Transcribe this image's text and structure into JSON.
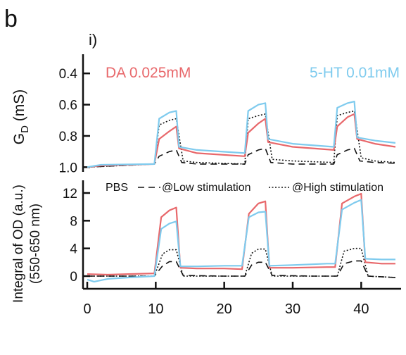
{
  "panel": {
    "letter": "b",
    "sublabel": "i)"
  },
  "chart_data": [
    {
      "type": "line",
      "name": "top",
      "ylabel_main": "G",
      "ylabel_sub": "D",
      "ylabel_unit": " (mS)",
      "y_reversed": true,
      "ylim": [
        0.3,
        1.03
      ],
      "xlim": [
        0,
        45
      ],
      "yticks": [
        0.4,
        0.6,
        0.8,
        1.0
      ],
      "yticklabels": [
        "0.4",
        "0.6",
        "0.8",
        "1.0"
      ],
      "annotations": {
        "left": "DA 0.025mM",
        "right": "5-HT 0.01mM",
        "left_color": "#e8686b",
        "right_color": "#7fcbee"
      },
      "series": [
        {
          "name": "DA 0.025mM",
          "color": "#e8686b",
          "style": "solid",
          "points": [
            [
              0,
              1.0
            ],
            [
              2,
              0.99
            ],
            [
              9.8,
              0.98
            ],
            [
              10.5,
              0.82
            ],
            [
              12,
              0.77
            ],
            [
              13,
              0.74
            ],
            [
              13.4,
              0.88
            ],
            [
              16,
              0.91
            ],
            [
              23,
              0.93
            ],
            [
              23.5,
              0.78
            ],
            [
              25,
              0.72
            ],
            [
              26,
              0.69
            ],
            [
              26.4,
              0.84
            ],
            [
              30,
              0.87
            ],
            [
              36,
              0.89
            ],
            [
              36.5,
              0.74
            ],
            [
              38,
              0.68
            ],
            [
              39,
              0.66
            ],
            [
              39.4,
              0.82
            ],
            [
              42,
              0.85
            ],
            [
              45,
              0.87
            ]
          ]
        },
        {
          "name": "5-HT 0.01mM",
          "color": "#7fcbee",
          "style": "solid",
          "points": [
            [
              0,
              1.0
            ],
            [
              2,
              0.985
            ],
            [
              9.8,
              0.98
            ],
            [
              10.5,
              0.69
            ],
            [
              12,
              0.65
            ],
            [
              13,
              0.64
            ],
            [
              13.4,
              0.87
            ],
            [
              16,
              0.89
            ],
            [
              23,
              0.91
            ],
            [
              23.5,
              0.64
            ],
            [
              25,
              0.6
            ],
            [
              26,
              0.59
            ],
            [
              26.4,
              0.82
            ],
            [
              30,
              0.85
            ],
            [
              36,
              0.87
            ],
            [
              36.5,
              0.62
            ],
            [
              38,
              0.59
            ],
            [
              39,
              0.58
            ],
            [
              39.4,
              0.81
            ],
            [
              42,
              0.83
            ],
            [
              45,
              0.845
            ]
          ]
        },
        {
          "name": "@Low stimulation",
          "color": "#111111",
          "style": "dashed",
          "points": [
            [
              0,
              1.0
            ],
            [
              9.8,
              0.98
            ],
            [
              10.5,
              0.93
            ],
            [
              12,
              0.9
            ],
            [
              13,
              0.89
            ],
            [
              13.8,
              0.97
            ],
            [
              16,
              0.98
            ],
            [
              23,
              0.98
            ],
            [
              23.5,
              0.92
            ],
            [
              25,
              0.89
            ],
            [
              26,
              0.88
            ],
            [
              26.8,
              0.97
            ],
            [
              30,
              0.98
            ],
            [
              36,
              0.98
            ],
            [
              36.5,
              0.92
            ],
            [
              38,
              0.89
            ],
            [
              39,
              0.88
            ],
            [
              39.8,
              0.96
            ],
            [
              42,
              0.97
            ],
            [
              45,
              0.975
            ]
          ]
        },
        {
          "name": "@High stimulation",
          "color": "#111111",
          "style": "dotted",
          "points": [
            [
              0,
              1.0
            ],
            [
              9.8,
              0.98
            ],
            [
              10.5,
              0.73
            ],
            [
              12,
              0.7
            ],
            [
              13,
              0.69
            ],
            [
              14,
              0.96
            ],
            [
              16,
              0.97
            ],
            [
              23,
              0.98
            ],
            [
              23.5,
              0.69
            ],
            [
              25,
              0.67
            ],
            [
              26,
              0.66
            ],
            [
              27,
              0.95
            ],
            [
              30,
              0.96
            ],
            [
              36,
              0.97
            ],
            [
              36.5,
              0.67
            ],
            [
              38,
              0.65
            ],
            [
              39,
              0.64
            ],
            [
              40,
              0.94
            ],
            [
              42,
              0.96
            ],
            [
              45,
              0.97
            ]
          ]
        }
      ]
    },
    {
      "type": "line",
      "name": "bottom",
      "ylabel_line1": "Integral of OD (a.u.)",
      "ylabel_line2": "(550-650 nm)",
      "ylim": [
        -1,
        14
      ],
      "xlim": [
        0,
        45
      ],
      "yticks": [
        0,
        4,
        8,
        12
      ],
      "yticklabels": [
        "0",
        "4",
        "8",
        "12"
      ],
      "xticks": [
        0,
        10,
        20,
        30,
        40
      ],
      "xticklabels": [
        "0",
        "10",
        "20",
        "30",
        "40"
      ],
      "legend": {
        "items": [
          "PBS",
          "@Low stimulation",
          "@High stimulation"
        ],
        "placement": "top"
      },
      "series": [
        {
          "name": "DA",
          "color": "#e8686b",
          "style": "solid",
          "points": [
            [
              0,
              0.3
            ],
            [
              3,
              0.2
            ],
            [
              6,
              0.3
            ],
            [
              9.8,
              0.4
            ],
            [
              10.8,
              8.5
            ],
            [
              12,
              9.5
            ],
            [
              13,
              9.9
            ],
            [
              13.6,
              1.2
            ],
            [
              16,
              1.1
            ],
            [
              20,
              1.1
            ],
            [
              22.6,
              1.0
            ],
            [
              23.6,
              9.0
            ],
            [
              25,
              10.5
            ],
            [
              26,
              10.8
            ],
            [
              26.6,
              1.2
            ],
            [
              30,
              1.2
            ],
            [
              35,
              1.3
            ],
            [
              36.2,
              1.3
            ],
            [
              37.2,
              10.5
            ],
            [
              39,
              11.5
            ],
            [
              40,
              11.9
            ],
            [
              40.6,
              2.0
            ],
            [
              43,
              1.8
            ],
            [
              45,
              1.8
            ]
          ]
        },
        {
          "name": "5-HT",
          "color": "#7fcbee",
          "style": "solid",
          "points": [
            [
              0,
              -0.5
            ],
            [
              1,
              -0.8
            ],
            [
              3,
              -0.4
            ],
            [
              6,
              -0.2
            ],
            [
              9.8,
              0.0
            ],
            [
              10.8,
              6.8
            ],
            [
              12,
              7.6
            ],
            [
              13,
              7.9
            ],
            [
              13.6,
              1.4
            ],
            [
              16,
              1.4
            ],
            [
              20,
              1.5
            ],
            [
              22.6,
              1.5
            ],
            [
              23.6,
              8.5
            ],
            [
              25,
              9.2
            ],
            [
              26,
              9.3
            ],
            [
              26.6,
              1.5
            ],
            [
              30,
              1.6
            ],
            [
              35,
              1.8
            ],
            [
              36.2,
              1.8
            ],
            [
              37.2,
              9.6
            ],
            [
              39,
              10.6
            ],
            [
              40,
              11.0
            ],
            [
              40.6,
              2.5
            ],
            [
              43,
              2.4
            ],
            [
              45,
              2.4
            ]
          ]
        },
        {
          "name": "@Low stimulation",
          "color": "#111111",
          "style": "dashed",
          "points": [
            [
              0,
              0.0
            ],
            [
              9.8,
              0.0
            ],
            [
              11,
              1.5
            ],
            [
              12,
              2.1
            ],
            [
              13,
              2.1
            ],
            [
              14,
              0.1
            ],
            [
              20,
              0.0
            ],
            [
              23,
              0.0
            ],
            [
              24,
              1.6
            ],
            [
              25,
              2.0
            ],
            [
              26,
              2.0
            ],
            [
              27,
              0.1
            ],
            [
              33,
              0.0
            ],
            [
              36.5,
              0.0
            ],
            [
              37.5,
              1.8
            ],
            [
              39,
              2.2
            ],
            [
              40,
              2.2
            ],
            [
              41,
              0.0
            ],
            [
              45,
              -0.2
            ]
          ]
        },
        {
          "name": "@High stimulation",
          "color": "#111111",
          "style": "dotted",
          "points": [
            [
              0,
              0.0
            ],
            [
              9.8,
              0.0
            ],
            [
              11,
              3.2
            ],
            [
              12,
              3.8
            ],
            [
              13,
              3.8
            ],
            [
              14,
              0.0
            ],
            [
              20,
              0.0
            ],
            [
              23,
              0.0
            ],
            [
              24,
              3.3
            ],
            [
              25,
              3.9
            ],
            [
              26,
              3.9
            ],
            [
              27,
              0.0
            ],
            [
              33,
              0.0
            ],
            [
              36.5,
              0.0
            ],
            [
              37.5,
              3.6
            ],
            [
              39,
              4.0
            ],
            [
              40,
              4.0
            ],
            [
              41,
              0.0
            ],
            [
              45,
              -0.2
            ]
          ]
        }
      ]
    }
  ]
}
